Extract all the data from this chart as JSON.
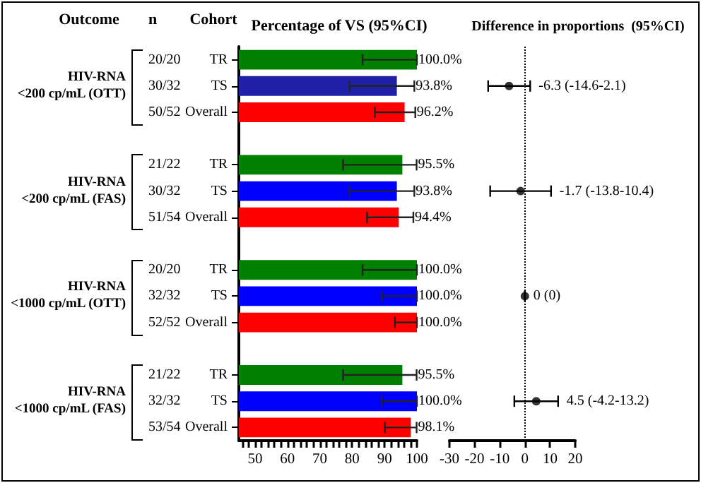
{
  "chart_data": [
    {
      "type": "bar",
      "orientation": "horizontal",
      "title": "Percentage of VS (95%CI)",
      "ylabel": "Cohort",
      "categories": [
        "TR",
        "TS",
        "Overall",
        null,
        "TR",
        "TS",
        "Overall",
        null,
        "TR",
        "TS",
        "Overall",
        null,
        "TR",
        "TS",
        "Overall"
      ],
      "values": [
        100,
        93.8,
        96.2,
        null,
        95.5,
        93.8,
        94.4,
        null,
        100,
        100,
        100,
        null,
        95.5,
        100,
        98.1
      ],
      "colors": [
        "#008000",
        "#1f1fa8",
        "#ff0000",
        null,
        "#008000",
        "#0000ff",
        "#ff0000",
        null,
        "#008000",
        "#0000ff",
        "#ff0000",
        null,
        "#008000",
        "#0000ff",
        "#ff0000"
      ],
      "errors": [
        [
          83.2,
          100
        ],
        [
          79.2,
          99.2
        ],
        [
          87.0,
          99.5
        ],
        null,
        [
          77.2,
          99.9
        ],
        [
          79.2,
          99.2
        ],
        [
          84.6,
          98.9
        ],
        null,
        [
          83.2,
          100
        ],
        [
          89.1,
          100
        ],
        [
          93.2,
          100
        ],
        null,
        [
          77.2,
          99.9
        ],
        [
          89.1,
          100
        ],
        [
          90.1,
          99.9
        ]
      ],
      "value_labels": [
        "100.0%",
        "93.8%",
        "96.2%",
        null,
        "95.5%",
        "93.8%",
        "94.4%",
        null,
        "100.0%",
        "100.0%",
        "100.0%",
        null,
        "95.5%",
        "100.0%",
        "98.1%"
      ],
      "xlim": [
        45,
        100
      ],
      "xticks": [
        {
          "value": 46,
          "label": null
        },
        {
          "value": 48,
          "label": null
        },
        50,
        {
          "value": 52,
          "label": null
        },
        {
          "value": 54,
          "label": null
        },
        {
          "value": 56,
          "label": null
        },
        {
          "value": 58,
          "label": null
        },
        60,
        {
          "value": 62,
          "label": null
        },
        {
          "value": 64,
          "label": null
        },
        {
          "value": 66,
          "label": null
        },
        {
          "value": 68,
          "label": null
        },
        70,
        {
          "value": 72,
          "label": null
        },
        {
          "value": 74,
          "label": null
        },
        {
          "value": 76,
          "label": null
        },
        {
          "value": 78,
          "label": null
        },
        80,
        {
          "value": 82,
          "label": null
        },
        {
          "value": 84,
          "label": null
        },
        {
          "value": 86,
          "label": null
        },
        {
          "value": 88,
          "label": null
        },
        90,
        {
          "value": 92,
          "label": null
        },
        {
          "value": 94,
          "label": null
        },
        {
          "value": 96,
          "label": null
        },
        {
          "value": 98,
          "label": null
        },
        100
      ],
      "annotations": [
        "Outcome",
        "n",
        "HIV-RNA\n<200 cp/mL (OTT)",
        "HIV-RNA\n<200 cp/mL (FAS)",
        "HIV-RNA\n<1000 cp/mL (OTT)",
        "HIV-RNA\n<1000 cp/mL (FAS)",
        "20/20",
        "30/32",
        "50/52",
        "21/22",
        "30/32",
        "51/54",
        "20/20",
        "32/32",
        "52/52",
        "21/22",
        "32/32",
        "53/54"
      ]
    },
    {
      "type": "scatter",
      "orientation": "horizontal",
      "title": "Difference in proportions  (95%CI)",
      "color": "#000000",
      "marker": "circle",
      "tick_labels": "x",
      "categories": [
        null,
        null,
        null,
        null,
        null,
        null,
        null,
        null,
        null,
        null,
        null,
        null,
        null,
        null,
        null
      ],
      "values": [
        null,
        -6.3,
        null,
        null,
        null,
        -1.7,
        null,
        null,
        null,
        0,
        null,
        null,
        null,
        4.5,
        null
      ],
      "errors": [
        null,
        [
          -14.6,
          2.1
        ],
        null,
        null,
        null,
        [
          -13.8,
          10.4
        ],
        null,
        null,
        null,
        [
          0,
          0
        ],
        null,
        null,
        null,
        [
          -4.2,
          13.2
        ],
        null
      ],
      "value_labels": [
        null,
        "-6.3 (-14.6-2.1)",
        null,
        null,
        null,
        "-1.7 (-13.8-10.4)",
        null,
        null,
        null,
        "0 (0)",
        null,
        null,
        null,
        "4.5 (-4.2-13.2)",
        null
      ],
      "xlim": [
        -30,
        20
      ],
      "xticks": [
        -30,
        -20,
        -10,
        0,
        10,
        20
      ],
      "ref_lines": [
        {
          "axis": "x",
          "value": 0,
          "line_style": "dotted"
        }
      ]
    }
  ]
}
